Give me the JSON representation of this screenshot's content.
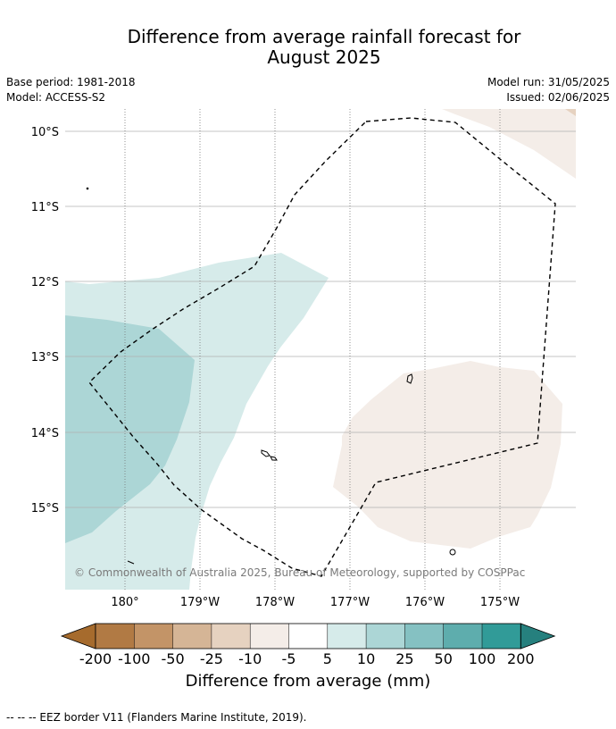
{
  "title_line1": "Difference from average rainfall forecast for",
  "title_line2": "August 2025",
  "base_period": "Base period: 1981-2018",
  "model": "Model: ACCESS-S2",
  "model_run": "Model run: 31/05/2025",
  "issued": "Issued: 02/06/2025",
  "copyright": "© Commonwealth of Australia 2025, Bureau of Meteorology, supported by COSPPac",
  "lat_labels": [
    "10°S",
    "11°S",
    "12°S",
    "13°S",
    "14°S",
    "15°S"
  ],
  "lon_labels": [
    "180°",
    "179°W",
    "178°W",
    "177°W",
    "176°W",
    "175°W"
  ],
  "colorbar": {
    "labels": [
      "-200",
      "-100",
      "-50",
      "-25",
      "-10",
      "-5",
      "5",
      "10",
      "25",
      "50",
      "100",
      "200"
    ],
    "colors": [
      "#a66b2d",
      "#b17a44",
      "#c39467",
      "#d5b596",
      "#e6d2c0",
      "#f4ede8",
      "#ffffff",
      "#d6ebea",
      "#acd6d6",
      "#85c1c2",
      "#5eadad",
      "#319b98",
      "#26807e"
    ],
    "title": "Difference from average (mm)"
  },
  "legend_footer": "-- -- -- EEZ border V11 (Flanders Marine Institute, 2019)."
}
